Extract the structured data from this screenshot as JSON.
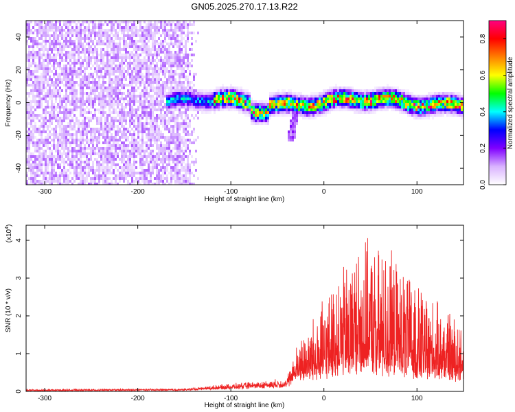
{
  "title": "GN05.2025.270.17.13.R22",
  "chart_data": [
    {
      "type": "heatmap",
      "name": "spectrogram",
      "xlabel": "Height of straight line (km)",
      "ylabel": "Frequency (Hz)",
      "xlim": [
        -320,
        150
      ],
      "ylim": [
        -50,
        50
      ],
      "xticks": [
        -300,
        -200,
        -100,
        0,
        100
      ],
      "xtick_labels": [
        "-300",
        "-200",
        "-100",
        "0",
        "100"
      ],
      "yticks": [
        -40,
        -20,
        0,
        20,
        40
      ],
      "ytick_labels": [
        "-40",
        "-20",
        "0",
        "20",
        "40"
      ],
      "noise_region_x": [
        -320,
        -135
      ],
      "band_region_x": [
        -170,
        150
      ],
      "band_center_hz": 1,
      "band_halfwidth_hz": 5,
      "colorbar": {
        "label": "Normalized spectral amplitude",
        "range": [
          0,
          0.9
        ],
        "ticks": [
          0.0,
          0.2,
          0.4,
          0.6,
          0.8
        ],
        "tick_labels": [
          "0.0",
          "0.2",
          "0.4",
          "0.6",
          "0.8"
        ],
        "colors": [
          "#ffffff",
          "#d9b3ff",
          "#8000ff",
          "#0000ff",
          "#00ffff",
          "#00ff00",
          "#ffff00",
          "#ff8000",
          "#ff0000",
          "#ff0080"
        ]
      }
    },
    {
      "type": "line",
      "name": "snr",
      "xlabel": "Height of straight line (km)",
      "ylabel": "SNR (10 * v/v)",
      "yscale_note": "(x10",
      "yscale_exp": "4",
      "xlim": [
        -320,
        150
      ],
      "ylim": [
        0,
        4.4
      ],
      "xticks": [
        -300,
        -200,
        -100,
        0,
        100
      ],
      "xtick_labels": [
        "-300",
        "-200",
        "-100",
        "0",
        "100"
      ],
      "yticks": [
        0,
        1,
        2,
        3,
        4
      ],
      "ytick_labels": [
        "0",
        "1",
        "2",
        "3",
        "4"
      ],
      "color": "#ee2222",
      "envelope": [
        {
          "x": -320,
          "base": 0.02,
          "amp": 0.03
        },
        {
          "x": -150,
          "base": 0.03,
          "amp": 0.04
        },
        {
          "x": -110,
          "base": 0.08,
          "amp": 0.08
        },
        {
          "x": -40,
          "base": 0.15,
          "amp": 0.15
        },
        {
          "x": -30,
          "base": 0.4,
          "amp": 0.7
        },
        {
          "x": 0,
          "base": 0.5,
          "amp": 1.8
        },
        {
          "x": 40,
          "base": 0.7,
          "amp": 3.2
        },
        {
          "x": 70,
          "base": 0.6,
          "amp": 3.0
        },
        {
          "x": 100,
          "base": 0.5,
          "amp": 2.2
        },
        {
          "x": 150,
          "base": 0.4,
          "amp": 1.3
        }
      ]
    }
  ]
}
